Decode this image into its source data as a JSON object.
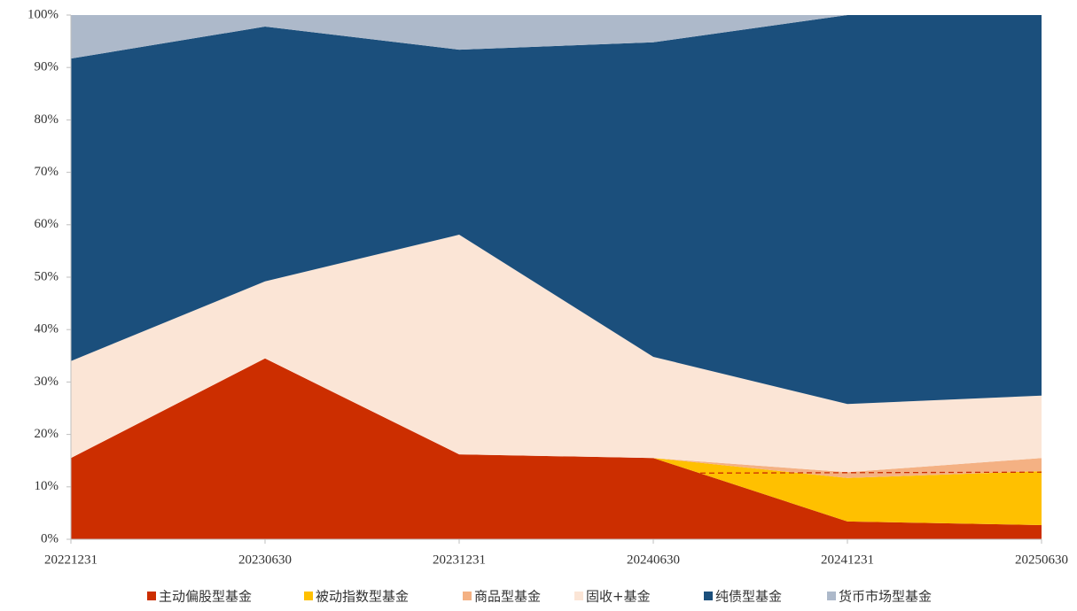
{
  "chart_data": {
    "type": "stacked_area",
    "categories": [
      "20221231",
      "20230630",
      "20231231",
      "20240630",
      "20241231",
      "20250630"
    ],
    "series": [
      {
        "name": "主动偏股型基金",
        "color": "#cc2e00",
        "values": [
          15.5,
          34.5,
          16.2,
          15.5,
          3.4,
          2.7
        ]
      },
      {
        "name": "被动指数型基金",
        "color": "#ffc000",
        "values": [
          0,
          0,
          0,
          0,
          8.3,
          10.3
        ]
      },
      {
        "name": "商品型基金",
        "color": "#f4b183",
        "values": [
          0,
          0,
          0,
          0,
          1.1,
          2.5
        ]
      },
      {
        "name": "固收+基金",
        "color": "#fbe5d6",
        "values": [
          18.5,
          14.7,
          41.9,
          19.3,
          13.0,
          11.9
        ]
      },
      {
        "name": "纯债型基金",
        "color": "#1b4f7c",
        "values": [
          57.7,
          48.6,
          35.3,
          60.0,
          74.2,
          72.6
        ]
      },
      {
        "name": "货币市场型基金",
        "color": "#adb9ca",
        "values": [
          8.3,
          2.2,
          6.6,
          5.2,
          0,
          0
        ]
      }
    ],
    "dashed_line": {
      "color": "#cc2e00",
      "values": [
        12.0,
        12.2,
        12.4,
        12.6,
        12.7,
        12.8
      ]
    },
    "ylim": [
      0,
      100
    ],
    "yticks": [
      {
        "value": 0,
        "label": "0%"
      },
      {
        "value": 10,
        "label": "10%"
      },
      {
        "value": 20,
        "label": "20%"
      },
      {
        "value": 30,
        "label": "30%"
      },
      {
        "value": 40,
        "label": "40%"
      },
      {
        "value": 50,
        "label": "50%"
      },
      {
        "value": 60,
        "label": "60%"
      },
      {
        "value": 70,
        "label": "70%"
      },
      {
        "value": 80,
        "label": "80%"
      },
      {
        "value": 90,
        "label": "90%"
      },
      {
        "value": 100,
        "label": "100%"
      }
    ],
    "legend": "bottom"
  }
}
